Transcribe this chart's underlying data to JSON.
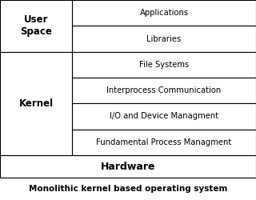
{
  "title": "Monolithic kernel based operating system",
  "right_cells": [
    "Applications",
    "Libraries",
    "File Systems",
    "Interprocess Communication",
    "I/O and Device Managment",
    "Fundamental Process Managment"
  ],
  "hardware_label": "Hardware",
  "bg_color": "#ffffff",
  "border_color": "#000000",
  "text_color": "#000000",
  "title_fontsize": 7.5,
  "cell_fontsize": 7.2,
  "label_fontsize": 8.5,
  "hardware_fontsize": 9.0
}
